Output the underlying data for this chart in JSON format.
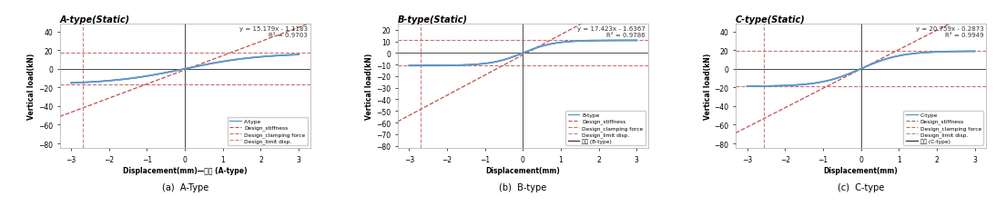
{
  "panels": [
    {
      "title": "A-type(Static)",
      "equation": "y = 15.179x - 1.1183",
      "r2": "R² = 0.9703",
      "xlim": [
        -3.3,
        3.3
      ],
      "ylim": [
        -85,
        48
      ],
      "yticks": [
        -80,
        -60,
        -40,
        -20,
        0,
        20,
        40
      ],
      "xticks": [
        -3,
        -2,
        -1,
        0,
        1,
        2,
        3
      ],
      "slope": 15.179,
      "intercept": -1.1183,
      "clamping_force": 17.0,
      "limit_disp": -2.7,
      "curve_type": "A",
      "curve_saturation": 17.0,
      "has_exp_in_xlabel": true,
      "exp_label": "실험 (A-type)"
    },
    {
      "title": "B-type(Static)",
      "equation": "y = 17.423x - 1.6367",
      "r2": "R² = 0.9786",
      "xlim": [
        -3.3,
        3.3
      ],
      "ylim": [
        -82,
        25
      ],
      "yticks": [
        -80,
        -70,
        -60,
        -50,
        -40,
        -30,
        -20,
        -10,
        0,
        10,
        20
      ],
      "xticks": [
        -3,
        -2,
        -1,
        0,
        1,
        2,
        3
      ],
      "slope": 17.423,
      "intercept": -1.6367,
      "clamping_force": 11.0,
      "limit_disp": -2.7,
      "curve_type": "B",
      "curve_saturation": 11.0,
      "has_exp_in_xlabel": false,
      "exp_label": "실험 (B-type)"
    },
    {
      "title": "C-type(Static)",
      "equation": "y = 20.759x - 0.2873",
      "r2": "R² = 0.9949",
      "xlim": [
        -3.3,
        3.3
      ],
      "ylim": [
        -85,
        48
      ],
      "yticks": [
        -80,
        -60,
        -40,
        -20,
        0,
        20,
        40
      ],
      "xticks": [
        -3,
        -2,
        -1,
        0,
        1,
        2,
        3
      ],
      "slope": 20.759,
      "intercept": -0.2873,
      "clamping_force": 19.0,
      "limit_disp": -2.55,
      "curve_type": "C",
      "curve_saturation": 19.0,
      "has_exp_in_xlabel": false,
      "exp_label": "실험 (C-type)"
    }
  ],
  "captions": [
    "(a)  A-Type",
    "(b)  B-type",
    "(c)  C-type"
  ],
  "ylabel": "Vertical load(kN)",
  "xlabel": "Displacement(mm)",
  "bg_color": "#ffffff",
  "stiffness_color": "#c0504d",
  "clamping_color": "#c87070",
  "limit_color": "#d08080",
  "blue_curve": "#5b9bd5",
  "dark_curve": "#404040"
}
